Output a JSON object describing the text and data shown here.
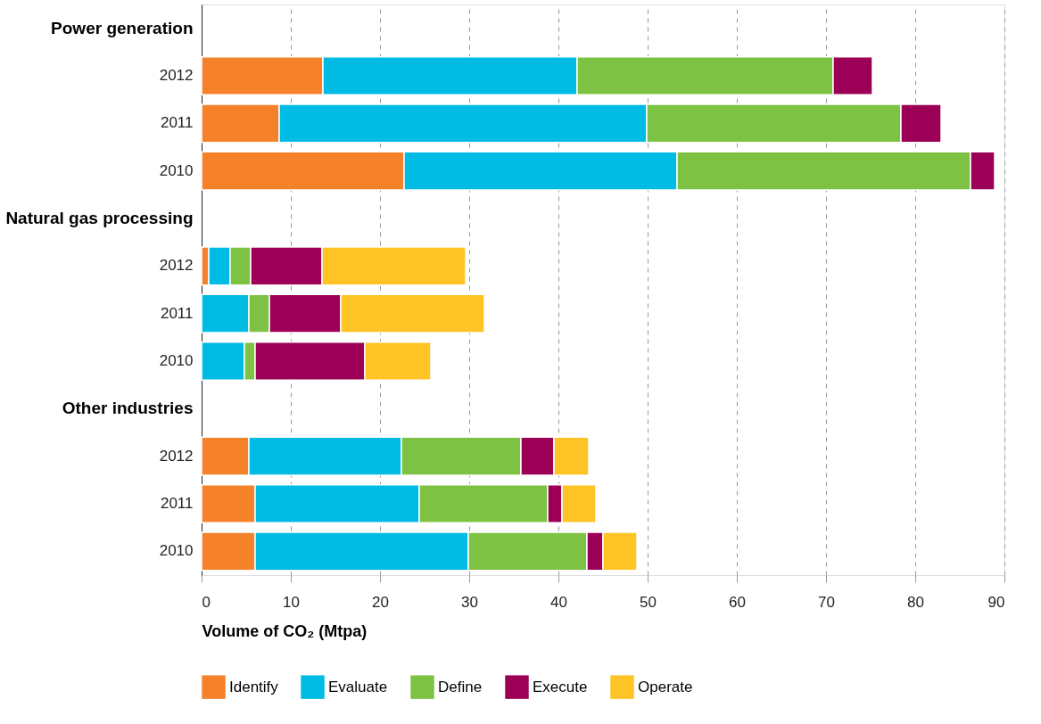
{
  "chart_data": {
    "type": "bar",
    "orientation": "horizontal",
    "stacked": true,
    "xlabel": "Volume of CO₂ (Mtpa)",
    "categories": [
      "Power generation",
      "2012",
      "2011",
      "2010",
      "Natural gas processing",
      "2012",
      "2011",
      "2010",
      "Other industries",
      "2012",
      "2011",
      "2010"
    ],
    "series": [
      {
        "name": "Identify",
        "color": "#f5822a",
        "values": [
          null,
          13.6,
          8.7,
          22.7,
          null,
          0.8,
          null,
          null,
          null,
          5.3,
          6.0,
          6.0
        ]
      },
      {
        "name": "Evaluate",
        "color": "#00bbe3",
        "values": [
          null,
          28.5,
          41.2,
          30.6,
          null,
          2.4,
          5.3,
          4.8,
          null,
          17.1,
          18.4,
          23.9
        ]
      },
      {
        "name": "Define",
        "color": "#7dc242",
        "values": [
          null,
          28.7,
          28.5,
          32.9,
          null,
          2.3,
          2.3,
          1.2,
          null,
          13.4,
          14.4,
          13.3
        ]
      },
      {
        "name": "Execute",
        "color": "#9c0056",
        "values": [
          null,
          4.4,
          4.5,
          2.7,
          null,
          8.0,
          8.0,
          12.3,
          null,
          3.7,
          1.6,
          1.8
        ]
      },
      {
        "name": "Operate",
        "color": "#fec325",
        "values": [
          null,
          null,
          null,
          null,
          null,
          16.1,
          16.1,
          7.4,
          null,
          3.9,
          3.8,
          3.8
        ]
      }
    ],
    "xlim": [
      0,
      90
    ],
    "xticks": [
      0,
      10,
      20,
      30,
      40,
      50,
      60,
      70,
      80,
      90
    ],
    "grid": "x",
    "legend": "bottom"
  }
}
